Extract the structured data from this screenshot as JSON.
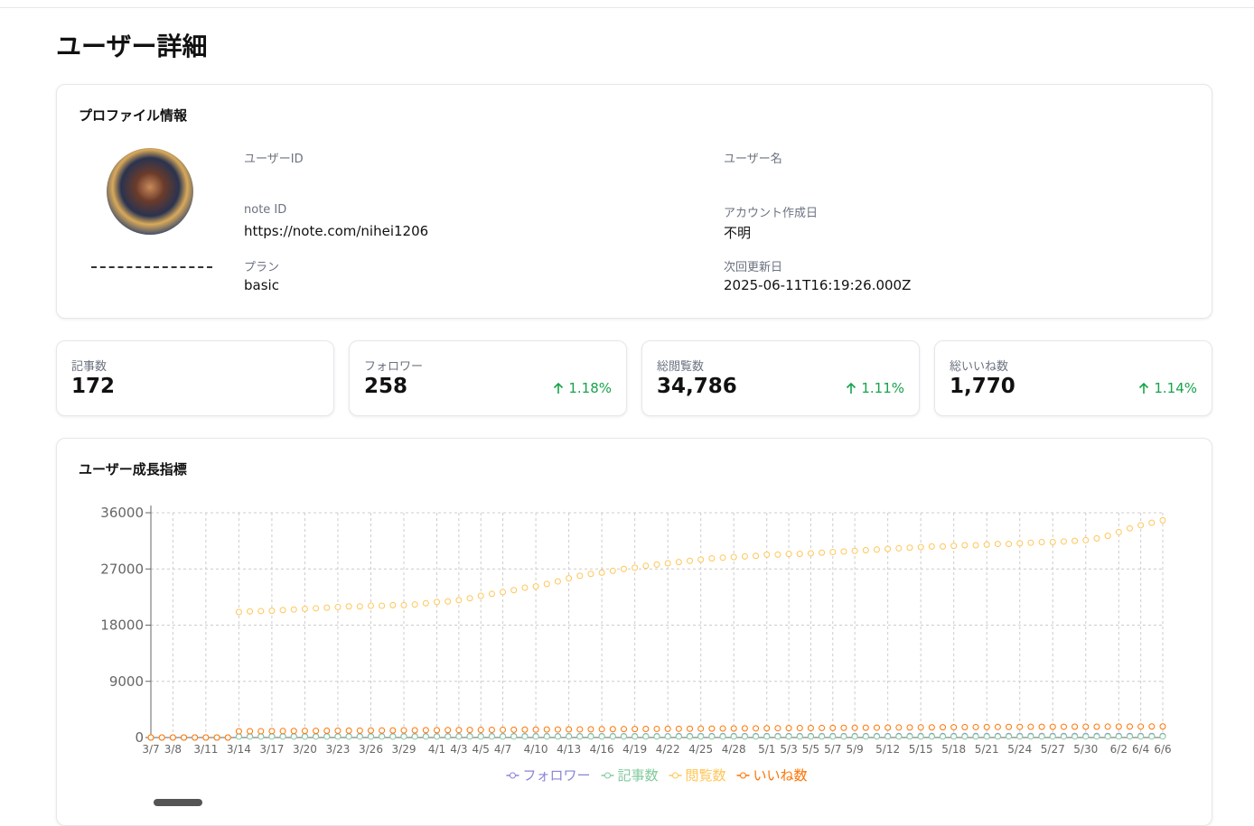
{
  "header": {
    "title": "ユーザー詳細"
  },
  "profile": {
    "title": "プロファイル情報",
    "fields": [
      {
        "label": "ユーザーID"
      },
      {
        "label": "ユーザー名"
      },
      {
        "label": "note ID",
        "value": "https://note.com/nihei1206"
      },
      {
        "label": "アカウント作成日",
        "value": "不明"
      },
      {
        "label": "プラン",
        "value": "basic"
      },
      {
        "label": "次回更新日",
        "value": "2025-06-11T16:19:26.000Z"
      }
    ]
  },
  "stats": [
    {
      "label": "記事数",
      "value": "172"
    },
    {
      "label": "フォロワー",
      "value": "258",
      "change": "1.18%"
    },
    {
      "label": "総閲覧数",
      "value": "34,786",
      "change": "1.11%"
    },
    {
      "label": "総いいね数",
      "value": "1,770",
      "change": "1.14%"
    }
  ],
  "chart_data": {
    "type": "line",
    "title": "ユーザー成長指標",
    "categories": [
      "3/7",
      null,
      "3/8",
      null,
      null,
      "3/11",
      null,
      null,
      "3/14",
      null,
      null,
      "3/17",
      null,
      null,
      "3/20",
      null,
      null,
      "3/23",
      null,
      null,
      "3/26",
      null,
      null,
      "3/29",
      null,
      null,
      "4/1",
      null,
      "4/3",
      null,
      "4/5",
      null,
      "4/7",
      null,
      null,
      "4/10",
      null,
      null,
      "4/13",
      null,
      null,
      "4/16",
      null,
      null,
      "4/19",
      null,
      null,
      "4/22",
      null,
      null,
      "4/25",
      null,
      null,
      "4/28",
      null,
      null,
      "5/1",
      null,
      "5/3",
      null,
      "5/5",
      null,
      "5/7",
      null,
      "5/9",
      null,
      null,
      "5/12",
      null,
      null,
      "5/15",
      null,
      null,
      "5/18",
      null,
      null,
      "5/21",
      null,
      null,
      "5/24",
      null,
      null,
      "5/27",
      null,
      null,
      "5/30",
      null,
      null,
      "6/2",
      null,
      "6/4",
      null,
      "6/6"
    ],
    "ylim": [
      0,
      36000
    ],
    "yticks": [
      0,
      9000,
      18000,
      27000,
      36000
    ],
    "grid": true,
    "series": [
      {
        "name": "フォロワー",
        "color": "#8884d8",
        "values": [
          0,
          0,
          0,
          0,
          0,
          0,
          0,
          0,
          200,
          200,
          200,
          200,
          200,
          200,
          200,
          200,
          200,
          200,
          210,
          210,
          210,
          210,
          210,
          210,
          210,
          210,
          210,
          210,
          220,
          220,
          220,
          220,
          220,
          220,
          220,
          220,
          220,
          220,
          225,
          225,
          225,
          225,
          225,
          225,
          225,
          225,
          225,
          225,
          230,
          230,
          230,
          230,
          230,
          230,
          230,
          230,
          230,
          230,
          240,
          240,
          240,
          240,
          240,
          240,
          240,
          240,
          240,
          240,
          245,
          245,
          245,
          245,
          245,
          245,
          245,
          245,
          245,
          245,
          250,
          250,
          250,
          250,
          250,
          250,
          250,
          250,
          250,
          250,
          252,
          254,
          255,
          256,
          258
        ]
      },
      {
        "name": "記事数",
        "color": "#82ca9d",
        "values": [
          0,
          0,
          0,
          0,
          0,
          0,
          0,
          0,
          150,
          150,
          150,
          150,
          150,
          150,
          150,
          150,
          150,
          150,
          152,
          152,
          152,
          152,
          152,
          152,
          152,
          152,
          152,
          152,
          155,
          155,
          155,
          155,
          155,
          155,
          155,
          155,
          155,
          155,
          158,
          158,
          158,
          158,
          158,
          158,
          158,
          158,
          158,
          158,
          160,
          160,
          160,
          160,
          160,
          160,
          160,
          160,
          160,
          160,
          163,
          163,
          163,
          163,
          163,
          163,
          163,
          163,
          163,
          163,
          166,
          166,
          166,
          166,
          166,
          166,
          166,
          166,
          166,
          166,
          169,
          169,
          169,
          169,
          169,
          169,
          169,
          169,
          169,
          169,
          170,
          170,
          171,
          171,
          172
        ]
      },
      {
        "name": "閲覧数",
        "color": "#ffc658",
        "values": [
          0,
          0,
          0,
          0,
          0,
          0,
          0,
          0,
          20100,
          20200,
          20250,
          20300,
          20400,
          20500,
          20600,
          20700,
          20800,
          20900,
          21000,
          21000,
          21100,
          21100,
          21200,
          21200,
          21300,
          21500,
          21700,
          21800,
          22000,
          22300,
          22700,
          23000,
          23300,
          23600,
          24000,
          24200,
          24600,
          25000,
          25500,
          25900,
          26200,
          26400,
          26700,
          27000,
          27200,
          27500,
          27700,
          27900,
          28100,
          28300,
          28500,
          28700,
          28800,
          28900,
          29000,
          29100,
          29300,
          29300,
          29400,
          29400,
          29500,
          29600,
          29700,
          29800,
          29900,
          30000,
          30100,
          30200,
          30300,
          30400,
          30500,
          30600,
          30600,
          30700,
          30800,
          30800,
          30900,
          31000,
          31000,
          31100,
          31200,
          31300,
          31300,
          31400,
          31500,
          31600,
          31900,
          32300,
          32900,
          33500,
          34000,
          34400,
          34786
        ]
      },
      {
        "name": "いいね数",
        "color": "#ff7300",
        "values": [
          0,
          0,
          0,
          0,
          0,
          0,
          0,
          0,
          1000,
          1010,
          1020,
          1030,
          1040,
          1050,
          1060,
          1070,
          1080,
          1090,
          1100,
          1110,
          1120,
          1130,
          1140,
          1150,
          1160,
          1170,
          1180,
          1190,
          1200,
          1210,
          1220,
          1230,
          1240,
          1250,
          1260,
          1270,
          1280,
          1290,
          1300,
          1310,
          1320,
          1330,
          1340,
          1350,
          1360,
          1370,
          1380,
          1390,
          1400,
          1410,
          1420,
          1430,
          1440,
          1450,
          1460,
          1470,
          1480,
          1490,
          1500,
          1510,
          1520,
          1530,
          1540,
          1550,
          1560,
          1570,
          1580,
          1590,
          1600,
          1610,
          1620,
          1630,
          1640,
          1650,
          1660,
          1670,
          1680,
          1690,
          1700,
          1705,
          1710,
          1715,
          1720,
          1725,
          1730,
          1735,
          1740,
          1745,
          1750,
          1755,
          1760,
          1765,
          1770
        ]
      }
    ]
  }
}
